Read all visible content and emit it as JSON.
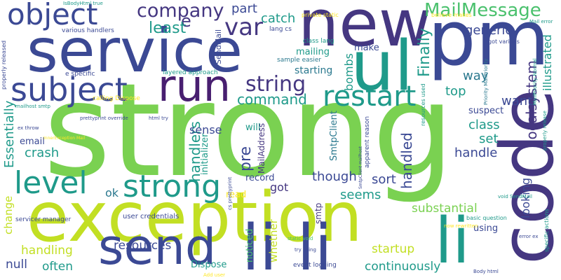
{
  "palette": {
    "navy": "#3b4994",
    "purple": "#481f70",
    "indigo": "#453781",
    "teal": "#1f9a8a",
    "green": "#7ad151",
    "lime": "#c2df23",
    "yellow": "#fde725",
    "blue": "#2a788e",
    "mint": "#4ac16d",
    "cyan": "#22a884"
  },
  "words": [
    {
      "text": "strong",
      "color": "green"
    },
    {
      "text": "exception",
      "color": "lime"
    },
    {
      "text": "code",
      "color": "indigo"
    },
    {
      "text": "service",
      "color": "navy"
    },
    {
      "text": "new",
      "color": "indigo"
    },
    {
      "text": "pm",
      "color": "navy"
    },
    {
      "text": "ul",
      "color": "teal"
    },
    {
      "text": "li li",
      "color": "navy"
    },
    {
      "text": "li",
      "color": "teal"
    },
    {
      "text": "send",
      "color": "navy"
    },
    {
      "text": "object",
      "color": "navy"
    },
    {
      "text": "run",
      "color": "purple"
    },
    {
      "text": "subject",
      "color": "navy"
    },
    {
      "text": "company",
      "color": "indigo"
    },
    {
      "text": "level",
      "color": "teal"
    },
    {
      "text": "strong",
      "color": "teal"
    },
    {
      "text": "MailMessage",
      "color": "mint"
    },
    {
      "text": "restart",
      "color": "teal"
    },
    {
      "text": "string",
      "color": "indigo"
    },
    {
      "text": "var",
      "color": "indigo"
    },
    {
      "text": "part",
      "color": "navy"
    },
    {
      "text": "e",
      "color": "indigo"
    },
    {
      "text": "least",
      "color": "teal"
    },
    {
      "text": "catch",
      "color": "teal"
    },
    {
      "text": "generic",
      "color": "navy"
    },
    {
      "text": "command",
      "color": "teal"
    },
    {
      "text": "Finally",
      "color": "teal"
    },
    {
      "text": "want",
      "color": "navy"
    },
    {
      "text": "localsystem",
      "color": "indigo"
    },
    {
      "text": "top",
      "color": "teal"
    },
    {
      "text": "way",
      "color": "blue"
    },
    {
      "text": "illustrated",
      "color": "teal"
    },
    {
      "text": "handlers",
      "color": "teal"
    },
    {
      "text": "handled",
      "color": "navy"
    },
    {
      "text": "bombs",
      "color": "teal"
    },
    {
      "text": "starting",
      "color": "blue"
    },
    {
      "text": "mailing",
      "color": "teal"
    },
    {
      "text": "make",
      "color": "navy"
    },
    {
      "text": "class",
      "color": "teal"
    },
    {
      "text": "set",
      "color": "teal"
    },
    {
      "text": "handle",
      "color": "navy"
    },
    {
      "text": "suspect",
      "color": "navy"
    },
    {
      "text": "crash",
      "color": "teal"
    },
    {
      "text": "email",
      "color": "navy"
    },
    {
      "text": "sense",
      "color": "navy"
    },
    {
      "text": "pre",
      "color": "navy"
    },
    {
      "text": "Essentially",
      "color": "teal"
    },
    {
      "text": "ok",
      "color": "blue"
    },
    {
      "text": "though",
      "color": "navy"
    },
    {
      "text": "sort",
      "color": "navy"
    },
    {
      "text": "got",
      "color": "indigo"
    },
    {
      "text": "seems",
      "color": "teal"
    },
    {
      "text": "substantial",
      "color": "green"
    },
    {
      "text": "looking",
      "color": "navy"
    },
    {
      "text": "resources",
      "color": "navy"
    },
    {
      "text": "startup",
      "color": "lime"
    },
    {
      "text": "handling",
      "color": "lime"
    },
    {
      "text": "often",
      "color": "teal"
    },
    {
      "text": "null",
      "color": "navy"
    },
    {
      "text": "continuously",
      "color": "teal"
    },
    {
      "text": "Dispose",
      "color": "teal"
    },
    {
      "text": "change",
      "color": "lime"
    },
    {
      "text": "whether",
      "color": "lime"
    },
    {
      "text": "noticed",
      "color": "mint"
    },
    {
      "text": "record",
      "color": "navy"
    },
    {
      "text": "will",
      "color": "teal"
    },
    {
      "text": "read",
      "color": "yellow"
    },
    {
      "text": "smtp",
      "color": "indigo"
    },
    {
      "text": "SmtpClient",
      "color": "blue"
    },
    {
      "text": "MailAddress",
      "color": "indigo"
    },
    {
      "text": "initializer",
      "color": "teal"
    },
    {
      "text": "SendMail",
      "color": "navy"
    },
    {
      "text": "using",
      "color": "navy"
    },
    {
      "text": "user credentials",
      "color": "navy"
    },
    {
      "text": "servicer manager",
      "color": "navy"
    },
    {
      "text": "event logging",
      "color": "navy"
    },
    {
      "text": "basic question",
      "color": "teal"
    },
    {
      "text": "apparent reason",
      "color": "navy"
    },
    {
      "text": "layered approach",
      "color": "teal"
    },
    {
      "text": "calling Dispose",
      "color": "yellow"
    },
    {
      "text": "e specific",
      "color": "navy"
    },
    {
      "text": "various handlers",
      "color": "navy"
    },
    {
      "text": "lang cs",
      "color": "navy"
    },
    {
      "text": "class lang",
      "color": "teal"
    },
    {
      "text": "sample easier",
      "color": "blue"
    },
    {
      "text": "properly released",
      "color": "navy"
    },
    {
      "text": "IsBodyHtml true",
      "color": "teal"
    },
    {
      "text": "private static",
      "color": "yellow"
    },
    {
      "text": "believe makes",
      "color": "yellow"
    },
    {
      "text": "Mail error",
      "color": "teal"
    },
    {
      "text": "got various",
      "color": "navy"
    },
    {
      "text": "prettyprint override",
      "color": "navy"
    },
    {
      "text": "html try",
      "color": "navy"
    },
    {
      "text": "mailhost smtp",
      "color": "teal"
    },
    {
      "text": "ex throw",
      "color": "navy"
    },
    {
      "text": "Priority MailPriority",
      "color": "blue"
    },
    {
      "text": "MailPriority Normal",
      "color": "teal"
    },
    {
      "text": "resources used",
      "color": "teal"
    },
    {
      "text": "Body html",
      "color": "navy"
    },
    {
      "text": "void SendMail",
      "color": "teal"
    },
    {
      "text": "now rewritten",
      "color": "yellow"
    },
    {
      "text": "properly release",
      "color": "teal"
    },
    {
      "text": "specific actions",
      "color": "teal"
    },
    {
      "text": "error ex",
      "color": "navy"
    },
    {
      "text": "static void",
      "color": "mint"
    },
    {
      "text": "try using",
      "color": "navy"
    },
    {
      "text": "Add user",
      "color": "yellow"
    },
    {
      "text": "cs prettyprint",
      "color": "navy"
    },
    {
      "text": "SmtpClient mailhost",
      "color": "navy"
    },
    {
      "text": "InnerException Mail",
      "color": "yellow"
    }
  ]
}
